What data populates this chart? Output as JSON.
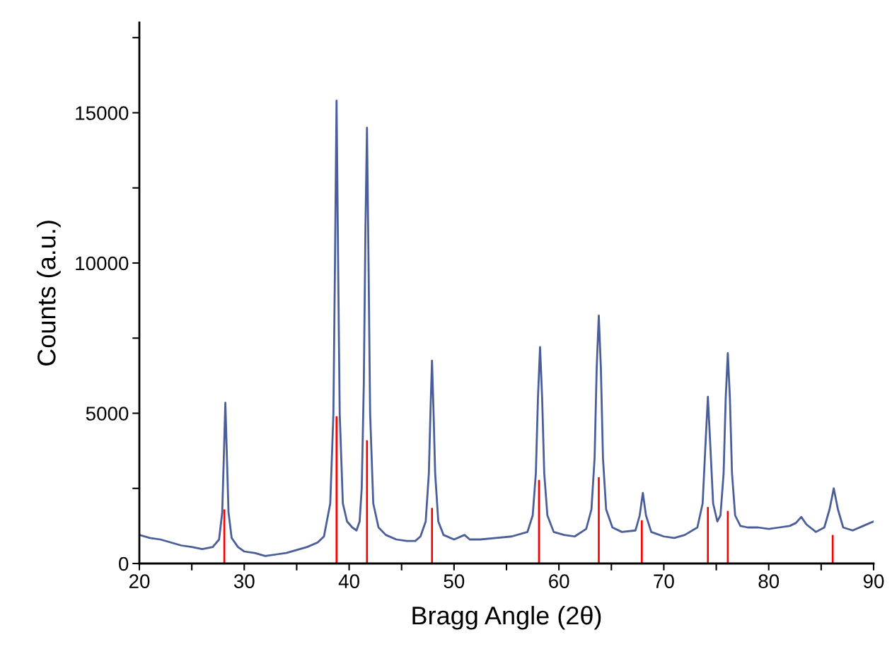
{
  "chart_data": {
    "type": "line",
    "xlabel": "Bragg Angle (2θ)",
    "ylabel": "Counts (a.u.)",
    "xlim": [
      20,
      90
    ],
    "ylim": [
      0,
      18000
    ],
    "xticks": [
      20,
      {
        "value": 25,
        "label": null
      },
      30,
      {
        "value": 35,
        "label": null
      },
      40,
      {
        "value": 45,
        "label": null
      },
      50,
      {
        "value": 55,
        "label": null
      },
      60,
      {
        "value": 65,
        "label": null
      },
      70,
      {
        "value": 75,
        "label": null
      },
      80,
      {
        "value": 85,
        "label": null
      },
      90
    ],
    "yticks": [
      0,
      {
        "value": 2500,
        "label": null
      },
      5000,
      {
        "value": 7500,
        "label": null
      },
      10000,
      {
        "value": 12500,
        "label": null
      },
      15000,
      {
        "value": 17500,
        "label": null
      }
    ],
    "grid": false,
    "marker": "none",
    "line_style": "solid",
    "series": [
      {
        "color": "#4a5f9a",
        "x": [
          20,
          21,
          22,
          23,
          24,
          25,
          26,
          27,
          27.6,
          27.9,
          28.05,
          28.2,
          28.35,
          28.5,
          28.8,
          29.4,
          30,
          31,
          32,
          33,
          34,
          35,
          36,
          37,
          37.6,
          38.2,
          38.5,
          38.65,
          38.8,
          38.95,
          39.1,
          39.4,
          39.8,
          40.3,
          40.7,
          41.0,
          41.2,
          41.4,
          41.55,
          41.7,
          41.85,
          42.0,
          42.3,
          42.8,
          43.5,
          44.5,
          45.5,
          46.3,
          46.8,
          47.3,
          47.6,
          47.75,
          47.9,
          48.05,
          48.2,
          48.5,
          49.0,
          50,
          51,
          51.5,
          52.5,
          54,
          55.5,
          57,
          57.5,
          57.8,
          58.0,
          58.2,
          58.4,
          58.6,
          58.9,
          59.5,
          60.5,
          61.5,
          62.6,
          63.1,
          63.4,
          63.6,
          63.8,
          64.0,
          64.2,
          64.5,
          65.1,
          66,
          67.3,
          67.7,
          68.0,
          68.3,
          68.8,
          70,
          71,
          72,
          73.2,
          73.7,
          73.95,
          74.2,
          74.45,
          74.7,
          75.1,
          75.4,
          75.7,
          75.9,
          76.1,
          76.3,
          76.5,
          76.8,
          77.3,
          78,
          79,
          80,
          81,
          82,
          82.6,
          83.1,
          83.6,
          84.5,
          85.3,
          85.8,
          86.2,
          86.6,
          87.1,
          88,
          89,
          90
        ],
        "values": [
          950,
          850,
          800,
          700,
          600,
          550,
          480,
          550,
          800,
          1700,
          3500,
          5350,
          3500,
          1700,
          850,
          550,
          400,
          350,
          250,
          300,
          350,
          450,
          550,
          700,
          900,
          2000,
          5000,
          10000,
          15400,
          10000,
          5000,
          2000,
          1400,
          1200,
          1100,
          1400,
          2500,
          6000,
          11000,
          14500,
          10000,
          5000,
          2000,
          1200,
          950,
          800,
          750,
          750,
          900,
          1400,
          3000,
          5000,
          6750,
          5000,
          3000,
          1400,
          950,
          800,
          950,
          800,
          800,
          850,
          900,
          1050,
          1600,
          3000,
          5500,
          7200,
          5500,
          3000,
          1600,
          1050,
          950,
          900,
          1150,
          1800,
          3500,
          6500,
          8250,
          6500,
          3500,
          1800,
          1200,
          1050,
          1100,
          1600,
          2350,
          1600,
          1050,
          900,
          850,
          950,
          1200,
          2000,
          3800,
          5550,
          3800,
          2000,
          1400,
          1600,
          3000,
          5500,
          7000,
          5500,
          3000,
          1600,
          1250,
          1200,
          1200,
          1150,
          1200,
          1250,
          1350,
          1550,
          1300,
          1050,
          1200,
          1800,
          2500,
          1800,
          1200,
          1100,
          1250,
          1400
        ]
      },
      {
        "type": "bar",
        "color": "#ff0000",
        "x": [
          28.1,
          38.8,
          41.7,
          47.9,
          58.1,
          63.8,
          67.9,
          74.2,
          76.1,
          86.1
        ],
        "values": [
          1800,
          4900,
          4100,
          1850,
          2780,
          2870,
          1440,
          1880,
          1750,
          950
        ]
      }
    ]
  }
}
